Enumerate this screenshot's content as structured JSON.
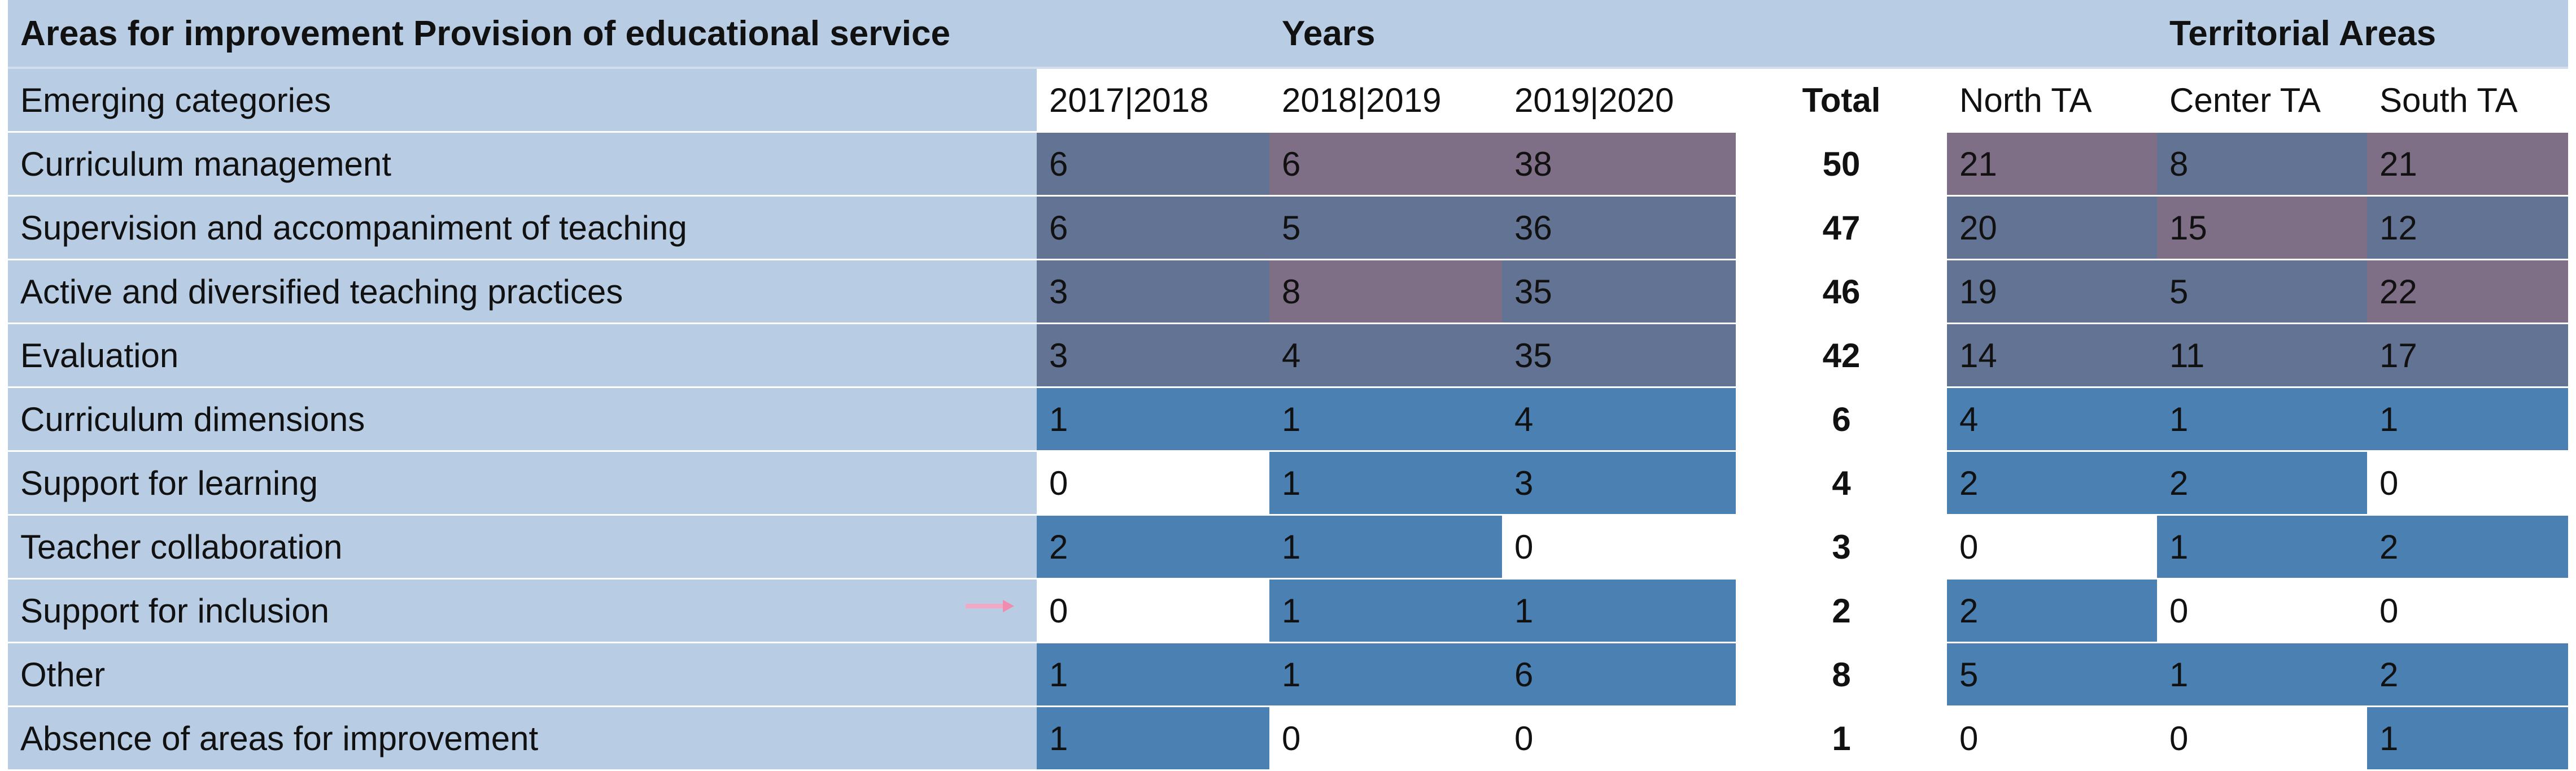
{
  "header": {
    "title": "Areas for improvement Provision of educational service",
    "years_label": "Years",
    "territorial_label": "Territorial Areas",
    "categories_label": "Emerging categories",
    "columns": [
      "2017|2018",
      "2018|2019",
      "2019|2020",
      "Total",
      "North TA",
      "Center TA",
      "South TA"
    ]
  },
  "rows": [
    {
      "label": "Curriculum management",
      "values": [
        "6",
        "6",
        "38",
        "50",
        "21",
        "8",
        "21"
      ]
    },
    {
      "label": "Supervision and accompaniment of teaching",
      "values": [
        "6",
        "5",
        "36",
        "47",
        "20",
        "15",
        "12"
      ]
    },
    {
      "label": "Active and diversified teaching practices",
      "values": [
        "3",
        "8",
        "35",
        "46",
        "19",
        "5",
        "22"
      ]
    },
    {
      "label": "Evaluation",
      "values": [
        "3",
        "4",
        "35",
        "42",
        "14",
        "11",
        "17"
      ]
    },
    {
      "label": "Curriculum dimensions",
      "values": [
        "1",
        "1",
        "4",
        "6",
        "4",
        "1",
        "1"
      ]
    },
    {
      "label": "Support for learning",
      "values": [
        "0",
        "1",
        "3",
        "4",
        "2",
        "2",
        "0"
      ]
    },
    {
      "label": "Teacher collaboration",
      "values": [
        "2",
        "1",
        "0",
        "3",
        "0",
        "1",
        "2"
      ]
    },
    {
      "label": "Support for inclusion",
      "values": [
        "0",
        "1",
        "1",
        "2",
        "2",
        "0",
        "0"
      ]
    },
    {
      "label": "Other",
      "values": [
        "1",
        "1",
        "6",
        "8",
        "5",
        "1",
        "2"
      ]
    },
    {
      "label": "Absence of areas for improvement",
      "values": [
        "1",
        "0",
        "0",
        "1",
        "0",
        "0",
        "1"
      ]
    }
  ],
  "cell_colors": [
    [
      "dark",
      "mauve",
      "mauve",
      "total",
      "mauve",
      "dark",
      "mauve"
    ],
    [
      "dark",
      "dark",
      "dark",
      "total",
      "dark",
      "mauve",
      "dark"
    ],
    [
      "dark",
      "mauve",
      "dark",
      "total",
      "dark",
      "dark",
      "mauve"
    ],
    [
      "dark",
      "dark",
      "dark",
      "total",
      "dark",
      "dark",
      "dark"
    ],
    [
      "blue",
      "blue",
      "blue",
      "total",
      "blue",
      "blue",
      "blue"
    ],
    [
      "white",
      "blue",
      "blue",
      "total",
      "blue",
      "blue",
      "white"
    ],
    [
      "blue",
      "blue",
      "white",
      "total",
      "white",
      "blue",
      "blue"
    ],
    [
      "white",
      "blue",
      "blue",
      "total",
      "blue",
      "white",
      "white"
    ],
    [
      "blue",
      "blue",
      "blue",
      "total",
      "blue",
      "blue",
      "blue"
    ],
    [
      "blue",
      "white",
      "white",
      "total",
      "white",
      "white",
      "blue"
    ]
  ],
  "palette": {
    "dark": "#637393",
    "mauve": "#7e6e86",
    "blue": "#4a80b2",
    "white": "#ffffff",
    "header": "#b8cde4"
  }
}
